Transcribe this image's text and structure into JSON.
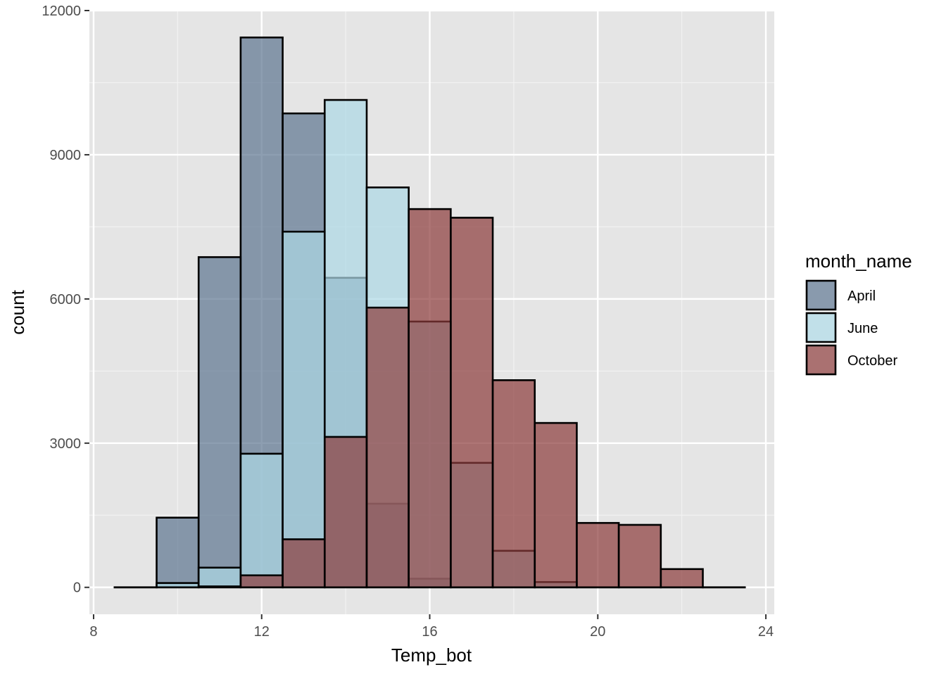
{
  "chart_data": {
    "type": "bar",
    "subtype": "overlapping-histogram",
    "xlabel": "Temp_bot",
    "ylabel": "count",
    "xlim": [
      7.9,
      24.2
    ],
    "ylim": [
      -560,
      12000
    ],
    "x_ticks": [
      8,
      12,
      16,
      20,
      24
    ],
    "x_tick_labels": [
      "8",
      "12",
      "16",
      "20",
      "24"
    ],
    "y_ticks": [
      0,
      3000,
      6000,
      9000,
      12000
    ],
    "y_tick_labels": [
      "0",
      "3000",
      "6000",
      "9000",
      "12000"
    ],
    "bin_width": 1,
    "bin_centers": [
      9,
      10,
      11,
      12,
      13,
      14,
      15,
      16,
      17,
      18,
      19,
      20,
      21,
      22,
      23
    ],
    "grid": true,
    "legend_title": "month_name",
    "legend_position": "right",
    "series": [
      {
        "name": "April",
        "color": "#5c7590",
        "values": [
          0,
          1450,
          6870,
          11440,
          9860,
          6440,
          1740,
          180,
          0,
          0,
          0,
          0,
          0,
          0,
          0
        ]
      },
      {
        "name": "June",
        "color": "#add8e6",
        "values": [
          0,
          90,
          410,
          2780,
          7400,
          10140,
          8320,
          5530,
          2590,
          760,
          110,
          0,
          0,
          0,
          0
        ]
      },
      {
        "name": "October",
        "color": "#8b3a3a",
        "values": [
          0,
          0,
          20,
          250,
          1000,
          3130,
          5820,
          7870,
          7690,
          4310,
          3420,
          1340,
          1300,
          380,
          0
        ]
      }
    ]
  }
}
